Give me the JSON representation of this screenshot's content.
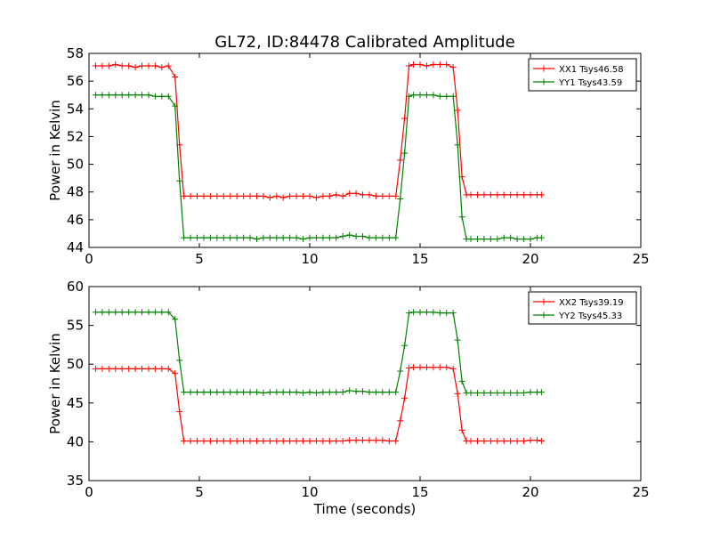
{
  "figure": {
    "title": "GL72, ID:84478 Calibrated Amplitude"
  },
  "chart_data": [
    {
      "type": "line",
      "title": "GL72, ID:84478 Calibrated Amplitude",
      "xlabel": "",
      "ylabel": "Power in Kelvin",
      "xlim": [
        0,
        25
      ],
      "ylim": [
        44,
        58
      ],
      "xticks": [
        0,
        5,
        10,
        15,
        20,
        25
      ],
      "yticks": [
        44,
        46,
        48,
        50,
        52,
        54,
        56,
        58
      ],
      "grid": false,
      "legend": "top-right",
      "x": [
        0.3,
        0.6,
        0.9,
        1.2,
        1.5,
        1.8,
        2.1,
        2.4,
        2.7,
        3.0,
        3.3,
        3.6,
        3.9,
        4.1,
        4.3,
        4.6,
        4.9,
        5.2,
        5.5,
        5.8,
        6.1,
        6.4,
        6.7,
        7.0,
        7.3,
        7.6,
        7.9,
        8.2,
        8.5,
        8.8,
        9.1,
        9.4,
        9.7,
        10.0,
        10.3,
        10.6,
        10.9,
        11.2,
        11.5,
        11.8,
        12.1,
        12.4,
        12.7,
        13.0,
        13.3,
        13.6,
        13.9,
        14.1,
        14.3,
        14.5,
        14.7,
        15.0,
        15.3,
        15.6,
        15.9,
        16.2,
        16.5,
        16.7,
        16.9,
        17.1,
        17.3,
        17.6,
        17.9,
        18.2,
        18.5,
        18.8,
        19.1,
        19.4,
        19.7,
        20.0,
        20.3,
        20.5
      ],
      "series": [
        {
          "name": "XX1 Tsys46.58",
          "color": "#ff0000",
          "values": [
            57.1,
            57.1,
            57.1,
            57.2,
            57.1,
            57.1,
            57.0,
            57.1,
            57.1,
            57.1,
            57.0,
            57.1,
            56.3,
            51.4,
            47.7,
            47.7,
            47.7,
            47.7,
            47.7,
            47.7,
            47.7,
            47.7,
            47.7,
            47.7,
            47.7,
            47.7,
            47.7,
            47.6,
            47.7,
            47.6,
            47.7,
            47.7,
            47.7,
            47.7,
            47.6,
            47.7,
            47.7,
            47.8,
            47.7,
            47.9,
            47.9,
            47.8,
            47.8,
            47.7,
            47.7,
            47.7,
            47.7,
            50.3,
            53.3,
            57.1,
            57.2,
            57.2,
            57.1,
            57.2,
            57.2,
            57.2,
            57.0,
            53.9,
            49.1,
            47.8,
            47.8,
            47.8,
            47.8,
            47.8,
            47.8,
            47.8,
            47.8,
            47.8,
            47.8,
            47.8,
            47.8,
            47.8
          ]
        },
        {
          "name": "YY1 Tsys43.59",
          "color": "#008000",
          "values": [
            55.0,
            55.0,
            55.0,
            55.0,
            55.0,
            55.0,
            55.0,
            55.0,
            55.0,
            54.9,
            54.9,
            54.9,
            54.2,
            48.8,
            44.7,
            44.7,
            44.7,
            44.7,
            44.7,
            44.7,
            44.7,
            44.7,
            44.7,
            44.7,
            44.7,
            44.6,
            44.7,
            44.7,
            44.7,
            44.7,
            44.7,
            44.7,
            44.6,
            44.7,
            44.7,
            44.7,
            44.7,
            44.7,
            44.8,
            44.9,
            44.8,
            44.8,
            44.7,
            44.7,
            44.7,
            44.7,
            44.7,
            47.5,
            50.8,
            54.9,
            55.0,
            55.0,
            55.0,
            55.0,
            54.9,
            54.9,
            54.9,
            51.4,
            46.2,
            44.6,
            44.6,
            44.6,
            44.6,
            44.6,
            44.6,
            44.7,
            44.7,
            44.6,
            44.6,
            44.6,
            44.7,
            44.7
          ]
        }
      ]
    },
    {
      "type": "line",
      "title": "",
      "xlabel": "Time (seconds)",
      "ylabel": "Power in Kelvin",
      "xlim": [
        0,
        25
      ],
      "ylim": [
        35,
        60
      ],
      "xticks": [
        0,
        5,
        10,
        15,
        20,
        25
      ],
      "yticks": [
        35,
        40,
        45,
        50,
        55,
        60
      ],
      "grid": false,
      "legend": "top-right",
      "x": [
        0.3,
        0.6,
        0.9,
        1.2,
        1.5,
        1.8,
        2.1,
        2.4,
        2.7,
        3.0,
        3.3,
        3.6,
        3.9,
        4.1,
        4.3,
        4.6,
        4.9,
        5.2,
        5.5,
        5.8,
        6.1,
        6.4,
        6.7,
        7.0,
        7.3,
        7.6,
        7.9,
        8.2,
        8.5,
        8.8,
        9.1,
        9.4,
        9.7,
        10.0,
        10.3,
        10.6,
        10.9,
        11.2,
        11.5,
        11.8,
        12.1,
        12.4,
        12.7,
        13.0,
        13.3,
        13.6,
        13.9,
        14.1,
        14.3,
        14.5,
        14.7,
        15.0,
        15.3,
        15.6,
        15.9,
        16.2,
        16.5,
        16.7,
        16.9,
        17.1,
        17.3,
        17.6,
        17.9,
        18.2,
        18.5,
        18.8,
        19.1,
        19.4,
        19.7,
        20.0,
        20.3,
        20.5
      ],
      "series": [
        {
          "name": "XX2 Tsys39.19",
          "color": "#ff0000",
          "values": [
            49.4,
            49.4,
            49.4,
            49.4,
            49.4,
            49.4,
            49.4,
            49.4,
            49.4,
            49.4,
            49.4,
            49.4,
            48.8,
            43.9,
            40.1,
            40.1,
            40.1,
            40.1,
            40.1,
            40.1,
            40.1,
            40.1,
            40.1,
            40.1,
            40.1,
            40.1,
            40.1,
            40.1,
            40.1,
            40.1,
            40.1,
            40.1,
            40.1,
            40.1,
            40.1,
            40.1,
            40.1,
            40.1,
            40.1,
            40.2,
            40.2,
            40.2,
            40.2,
            40.2,
            40.2,
            40.1,
            40.1,
            42.7,
            45.6,
            49.5,
            49.6,
            49.6,
            49.6,
            49.6,
            49.6,
            49.6,
            49.4,
            46.2,
            41.5,
            40.1,
            40.1,
            40.1,
            40.1,
            40.1,
            40.1,
            40.1,
            40.1,
            40.1,
            40.1,
            40.2,
            40.2,
            40.1
          ]
        },
        {
          "name": "YY2 Tsys45.33",
          "color": "#008000",
          "values": [
            56.7,
            56.7,
            56.7,
            56.7,
            56.7,
            56.7,
            56.7,
            56.7,
            56.7,
            56.7,
            56.7,
            56.7,
            55.8,
            50.5,
            46.4,
            46.4,
            46.4,
            46.4,
            46.4,
            46.4,
            46.4,
            46.4,
            46.4,
            46.4,
            46.4,
            46.4,
            46.3,
            46.4,
            46.4,
            46.4,
            46.4,
            46.4,
            46.3,
            46.4,
            46.3,
            46.4,
            46.4,
            46.4,
            46.4,
            46.6,
            46.5,
            46.5,
            46.4,
            46.4,
            46.4,
            46.4,
            46.4,
            49.1,
            52.4,
            56.6,
            56.7,
            56.7,
            56.7,
            56.7,
            56.6,
            56.6,
            56.6,
            53.1,
            47.8,
            46.3,
            46.3,
            46.3,
            46.3,
            46.3,
            46.3,
            46.3,
            46.3,
            46.3,
            46.3,
            46.4,
            46.4,
            46.4
          ]
        }
      ]
    }
  ]
}
